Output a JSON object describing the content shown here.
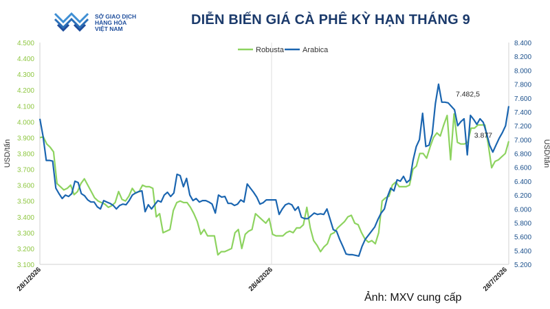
{
  "header": {
    "logo_lines": [
      "SỞ GIAO DỊCH",
      "HÀNG HÓA",
      "VIỆT NAM"
    ],
    "title": "DIỄN BIẾN GIÁ CÀ PHÊ KỲ HẠN THÁNG 9"
  },
  "footer": {
    "credit": "Ảnh: MXV cung cấp"
  },
  "chart_data": {
    "type": "line",
    "title": "DIỄN BIẾN GIÁ CÀ PHÊ KỲ HẠN THÁNG 9",
    "x_ticks": [
      "28/1/2026",
      "28/4/2026",
      "28/7/2026"
    ],
    "y_left": {
      "label": "USD/tấn",
      "ylim": [
        3100,
        4500
      ],
      "ticks": [
        "3.100",
        "3.200",
        "3.300",
        "3.400",
        "3.500",
        "3.600",
        "3.700",
        "3.800",
        "3.900",
        "4.000",
        "4.100",
        "4.200",
        "4.300",
        "4.400",
        "4.500"
      ]
    },
    "y_right": {
      "label": "USD/tấn",
      "ylim": [
        5200,
        8400
      ],
      "ticks": [
        "5.200",
        "5.400",
        "5.600",
        "5.800",
        "6.000",
        "6.200",
        "6.400",
        "6.600",
        "6.800",
        "7.000",
        "7.200",
        "7.400",
        "7.600",
        "7.800",
        "8.000",
        "8.200",
        "8.400"
      ]
    },
    "legend_position": "top",
    "series": [
      {
        "name": "Robusta",
        "axis": "left",
        "color": "#8dd35f",
        "values": [
          3900,
          3905,
          3860,
          3840,
          3810,
          3610,
          3590,
          3570,
          3580,
          3600,
          3540,
          3560,
          3610,
          3640,
          3600,
          3560,
          3520,
          3500,
          3490,
          3480,
          3460,
          3470,
          3490,
          3560,
          3510,
          3500,
          3530,
          3580,
          3550,
          3560,
          3600,
          3590,
          3590,
          3580,
          3400,
          3420,
          3300,
          3310,
          3320,
          3440,
          3490,
          3500,
          3490,
          3490,
          3460,
          3420,
          3370,
          3290,
          3320,
          3280,
          3280,
          3280,
          3160,
          3180,
          3180,
          3190,
          3200,
          3300,
          3320,
          3200,
          3290,
          3310,
          3320,
          3420,
          3400,
          3380,
          3360,
          3390,
          3290,
          3280,
          3280,
          3280,
          3300,
          3310,
          3300,
          3330,
          3330,
          3350,
          3460,
          3330,
          3250,
          3220,
          3180,
          3210,
          3230,
          3290,
          3300,
          3330,
          3350,
          3370,
          3400,
          3410,
          3360,
          3350,
          3300,
          3260,
          3240,
          3250,
          3230,
          3300,
          3500,
          3520,
          3530,
          3600,
          3620,
          3590,
          3590,
          3590,
          3600,
          3700,
          3720,
          3800,
          3800,
          3770,
          3840,
          3900,
          3930,
          3910,
          3980,
          4040,
          3760,
          4050,
          3870,
          3860,
          3860,
          3870,
          3960,
          3960,
          3980,
          3980,
          3980,
          3860,
          3710,
          3750,
          3760,
          3780,
          3800,
          3877
        ],
        "annotation": "3.877"
      },
      {
        "name": "Arabica",
        "axis": "right",
        "color": "#1a65b0",
        "values": [
          7300,
          7050,
          6700,
          6700,
          6690,
          6300,
          6220,
          6150,
          6200,
          6180,
          6220,
          6400,
          6380,
          6220,
          6190,
          6130,
          6100,
          6100,
          6030,
          6000,
          6120,
          6100,
          6080,
          6050,
          6000,
          6050,
          6070,
          6060,
          6120,
          6200,
          6230,
          6250,
          6260,
          5960,
          6060,
          6000,
          6060,
          6120,
          6100,
          6200,
          6240,
          6180,
          6230,
          6500,
          6480,
          6320,
          6440,
          6200,
          6120,
          6150,
          6100,
          6120,
          6120,
          6100,
          6070,
          5940,
          6200,
          6170,
          6180,
          6080,
          6080,
          6050,
          6070,
          6130,
          6100,
          6360,
          6300,
          6240,
          6170,
          6070,
          6090,
          6130,
          6130,
          6130,
          6130,
          5920,
          6000,
          6060,
          6080,
          6060,
          5980,
          6030,
          5880,
          5860,
          5860,
          5900,
          5940,
          5920,
          5930,
          5920,
          6000,
          5850,
          5700,
          5680,
          5560,
          5460,
          5350,
          5340,
          5340,
          5330,
          5320,
          5460,
          5560,
          5620,
          5680,
          5740,
          5850,
          5940,
          6000,
          6180,
          6300,
          6260,
          6420,
          6400,
          6470,
          6380,
          6420,
          6700,
          6900,
          7000,
          7380,
          6900,
          6920,
          7080,
          7520,
          7800,
          7540,
          7540,
          7530,
          7480,
          7430,
          7200,
          7260,
          7300,
          6780,
          7350,
          7290,
          7220,
          7300,
          7250,
          7100,
          6920,
          6820,
          6920,
          7020,
          7100,
          7200,
          7482.5
        ],
        "annotation": "7.482,5"
      }
    ]
  }
}
